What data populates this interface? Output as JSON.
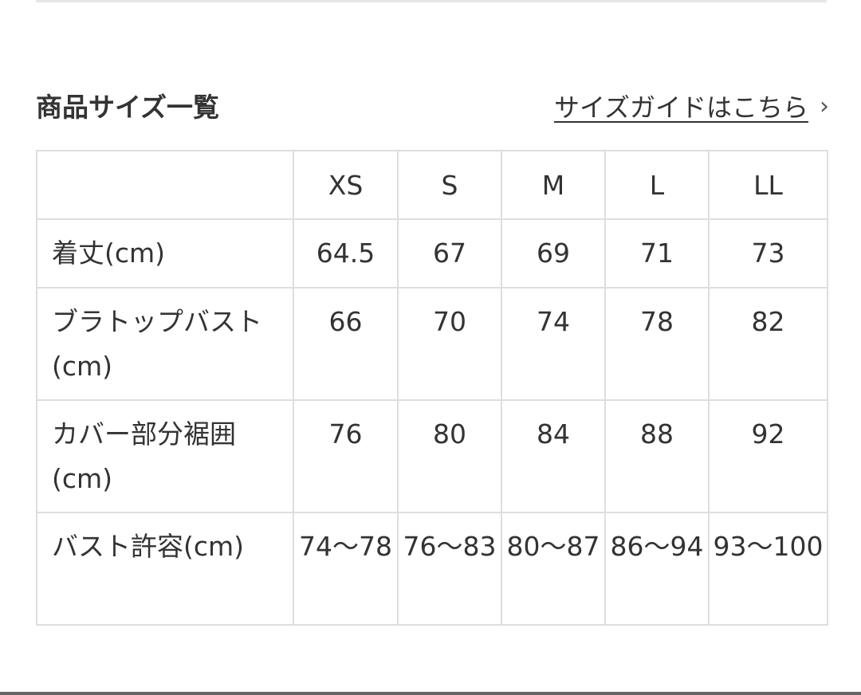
{
  "section": {
    "title": "商品サイズ一覧",
    "guide_link": "サイズガイドはこちら",
    "guide_icon": "chevron-right-icon"
  },
  "table": {
    "headers": [
      "",
      "XS",
      "S",
      "M",
      "L",
      "LL"
    ],
    "rows": [
      {
        "label": "着丈(cm)",
        "values": [
          "64.5",
          "67",
          "69",
          "71",
          "73"
        ]
      },
      {
        "label": "ブラトップバスト(cm)",
        "values": [
          "66",
          "70",
          "74",
          "78",
          "82"
        ]
      },
      {
        "label": "カバー部分裾囲(cm)",
        "values": [
          "76",
          "80",
          "84",
          "88",
          "92"
        ]
      },
      {
        "label": "バスト許容(cm)",
        "values": [
          "74〜78",
          "76〜83",
          "80〜87",
          "86〜94",
          "93〜100"
        ]
      }
    ]
  }
}
